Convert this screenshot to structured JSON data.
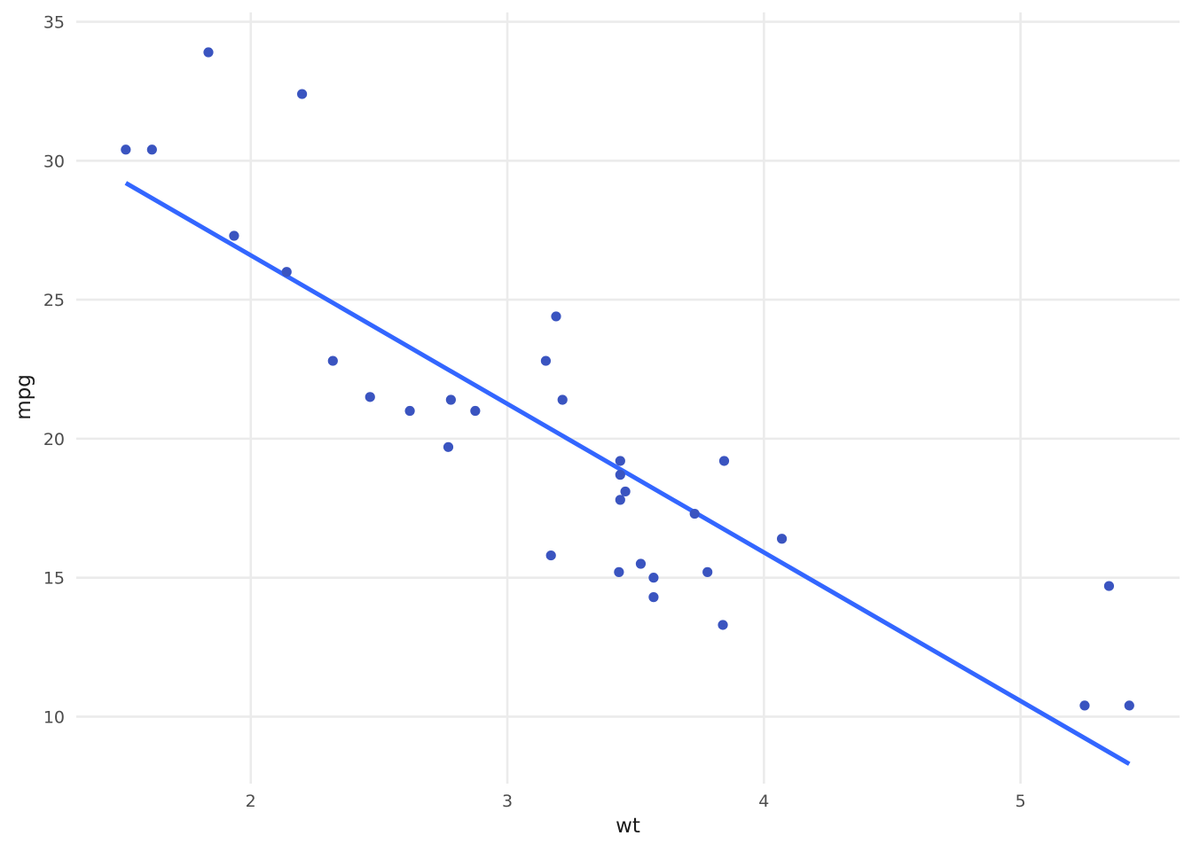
{
  "chart_data": {
    "type": "scatter",
    "title": "",
    "xlabel": "wt",
    "ylabel": "mpg",
    "xlim": [
      1.32,
      5.62
    ],
    "ylim": [
      7.08,
      35.4
    ],
    "x_ticks": [
      2,
      3,
      4,
      5
    ],
    "y_ticks": [
      10,
      15,
      20,
      25,
      30,
      35
    ],
    "grid": true,
    "legend": "none",
    "point_color": "#3a54c0",
    "line_color": "#3366ff",
    "series": [
      {
        "x": [
          2.62,
          2.875,
          2.32,
          3.215,
          3.44,
          3.46,
          3.57,
          3.19,
          3.15,
          3.44,
          3.44,
          4.07,
          3.73,
          3.78,
          5.25,
          5.424,
          5.345,
          2.2,
          1.615,
          1.835,
          2.465,
          3.52,
          3.435,
          3.84,
          3.845,
          1.935,
          2.14,
          1.513,
          3.17,
          2.77,
          3.57,
          2.78
        ],
        "y": [
          21.0,
          21.0,
          22.8,
          21.4,
          18.7,
          18.1,
          14.3,
          24.4,
          22.8,
          19.2,
          17.8,
          16.4,
          17.3,
          15.2,
          10.4,
          10.4,
          14.7,
          32.4,
          30.4,
          33.9,
          21.5,
          15.5,
          15.2,
          13.3,
          19.2,
          27.3,
          26.0,
          30.4,
          15.8,
          19.7,
          15.0,
          21.4
        ]
      }
    ],
    "trend_line": {
      "method": "linear",
      "intercept": 37.285,
      "slope": -5.344,
      "x_range": [
        1.513,
        5.424
      ]
    }
  }
}
